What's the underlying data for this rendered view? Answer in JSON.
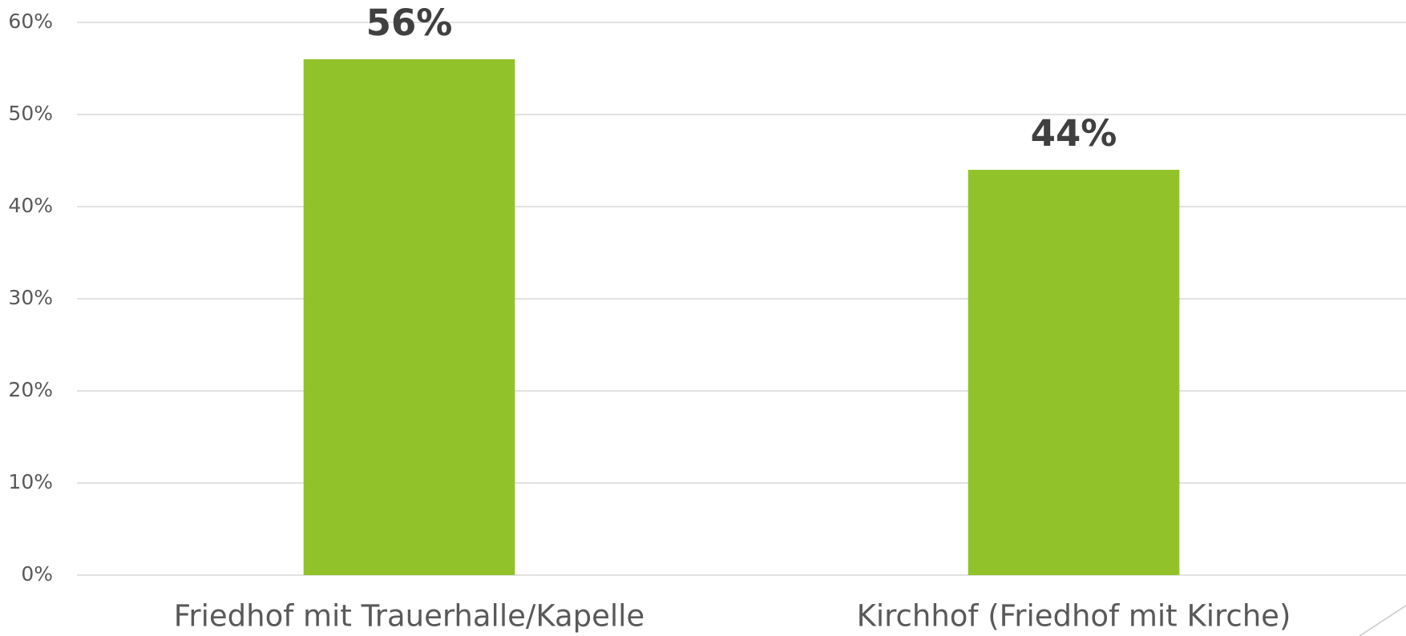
{
  "chart_data": {
    "type": "bar",
    "categories": [
      "Friedhof mit Trauerhalle/Kapelle",
      "Kirchhof (Friedhof mit Kirche)"
    ],
    "values": [
      56,
      44
    ],
    "value_labels": [
      "56%",
      "44%"
    ],
    "color": "#92c22a",
    "ylim": [
      0,
      60
    ],
    "yticks": [
      {
        "value": 0,
        "label": "0%"
      },
      {
        "value": 10,
        "label": "10%"
      },
      {
        "value": 20,
        "label": "20%"
      },
      {
        "value": 30,
        "label": "30%"
      },
      {
        "value": 40,
        "label": "40%"
      },
      {
        "value": 50,
        "label": "50%"
      },
      {
        "value": 60,
        "label": "60%"
      }
    ],
    "grid": true
  }
}
